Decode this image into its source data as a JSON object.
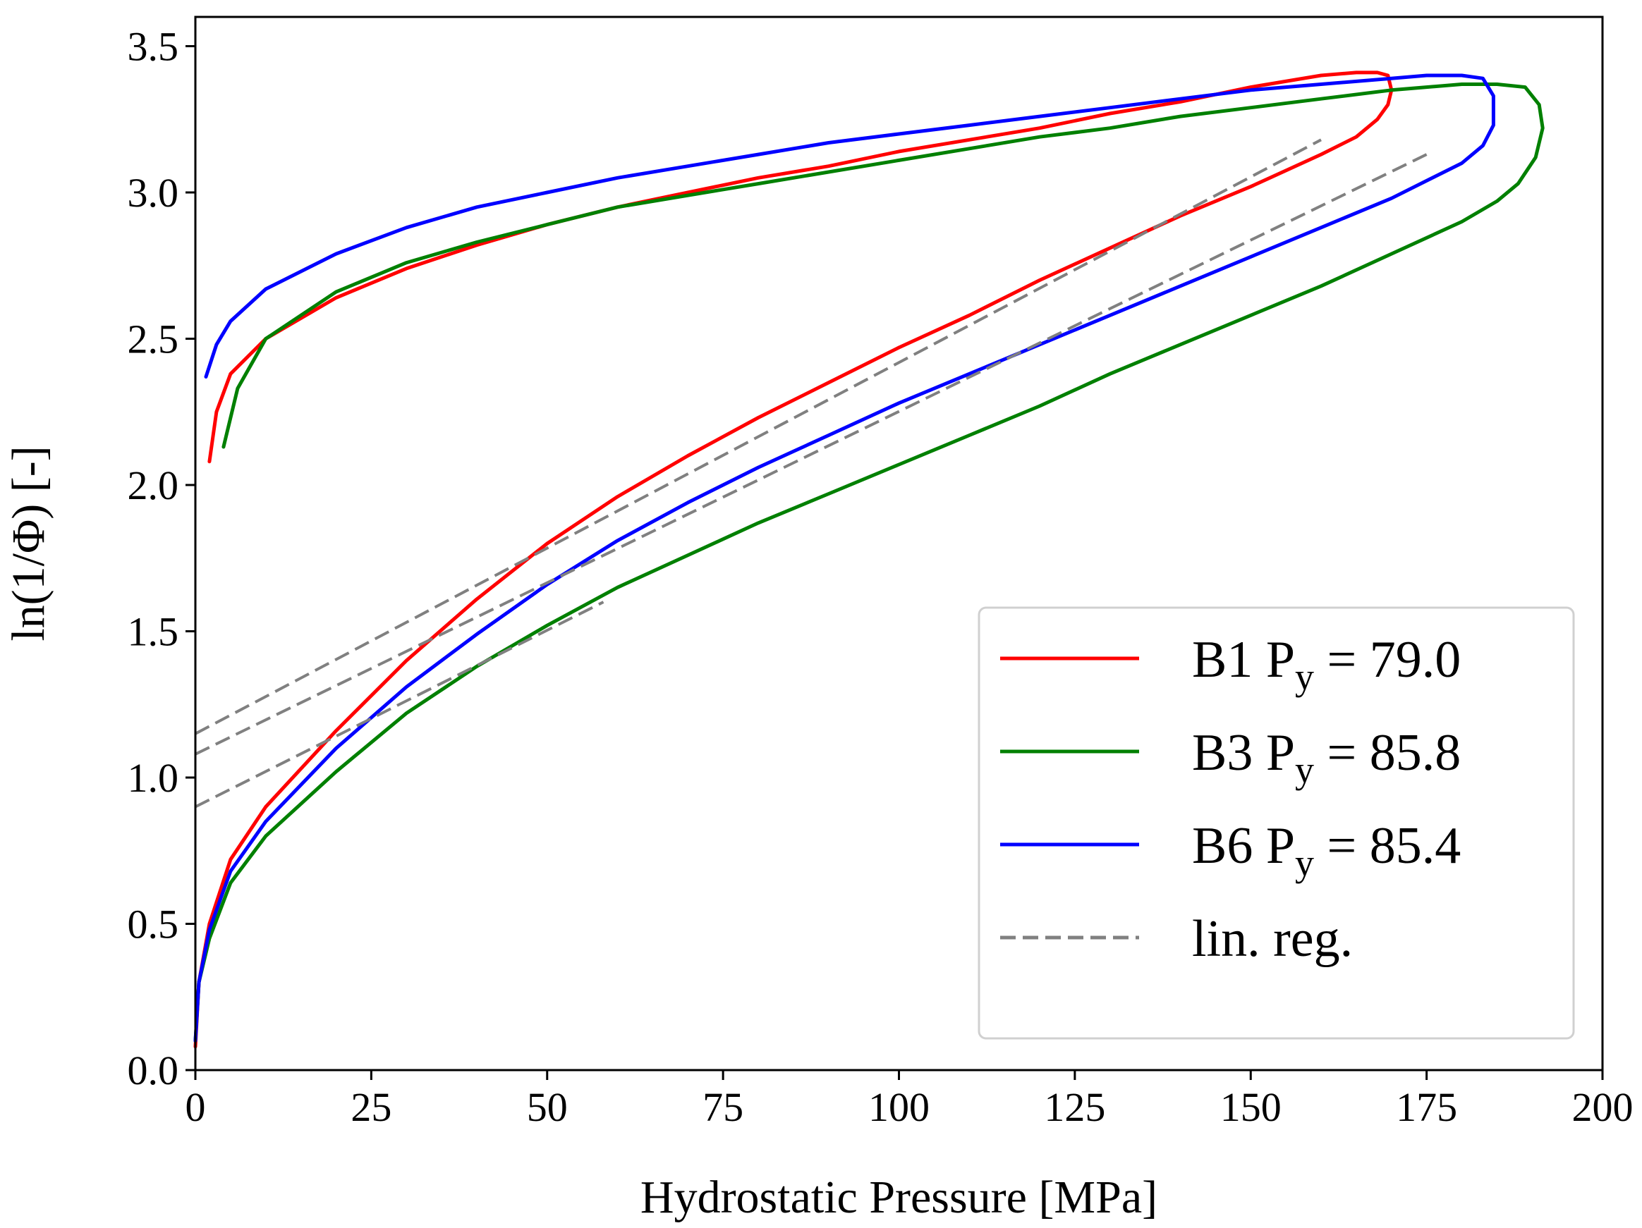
{
  "chart_data": {
    "type": "line",
    "title": "",
    "xlabel": "Hydrostatic Pressure [MPa]",
    "ylabel": "ln(1/Φ) [-]",
    "xlim": [
      0,
      200
    ],
    "ylim": [
      0,
      3.6
    ],
    "xticks": [
      0,
      25,
      50,
      75,
      100,
      125,
      150,
      175,
      200
    ],
    "yticks": [
      0.0,
      0.5,
      1.0,
      1.5,
      2.0,
      2.5,
      3.0,
      3.5
    ],
    "xtick_labels": [
      "0",
      "25",
      "50",
      "75",
      "100",
      "125",
      "150",
      "175",
      "200"
    ],
    "ytick_labels": [
      "0.0",
      "0.5",
      "1.0",
      "1.5",
      "2.0",
      "2.5",
      "3.0",
      "3.5"
    ],
    "grid": false,
    "legend_position": "bottom-right",
    "series": [
      {
        "name": "B1",
        "py_value": "79.0",
        "color": "#ff0000",
        "style": "solid",
        "x": [
          0,
          0.5,
          2,
          5,
          10,
          20,
          30,
          40,
          50,
          60,
          70,
          80,
          90,
          100,
          110,
          120,
          130,
          140,
          150,
          160,
          165,
          168,
          169.5,
          170,
          169.5,
          168,
          165,
          160,
          150,
          140,
          130,
          120,
          110,
          100,
          90,
          80,
          70,
          60,
          50,
          40,
          30,
          20,
          10,
          5,
          3,
          2
        ],
        "y": [
          0.08,
          0.3,
          0.5,
          0.72,
          0.9,
          1.16,
          1.4,
          1.61,
          1.8,
          1.96,
          2.1,
          2.23,
          2.35,
          2.47,
          2.58,
          2.7,
          2.81,
          2.92,
          3.02,
          3.13,
          3.19,
          3.25,
          3.3,
          3.35,
          3.4,
          3.41,
          3.41,
          3.4,
          3.36,
          3.31,
          3.27,
          3.22,
          3.18,
          3.14,
          3.09,
          3.05,
          3.0,
          2.95,
          2.89,
          2.82,
          2.74,
          2.64,
          2.5,
          2.38,
          2.25,
          2.08
        ]
      },
      {
        "name": "B3",
        "py_value": "85.8",
        "color": "#008000",
        "style": "solid",
        "x": [
          0,
          0.5,
          2,
          5,
          10,
          20,
          30,
          40,
          50,
          60,
          70,
          80,
          90,
          100,
          110,
          120,
          130,
          140,
          150,
          160,
          170,
          180,
          185,
          188,
          190.5,
          191.5,
          191,
          189,
          185,
          180,
          170,
          160,
          150,
          140,
          130,
          120,
          110,
          100,
          90,
          80,
          70,
          60,
          50,
          40,
          30,
          20,
          10,
          6,
          4
        ],
        "y": [
          0.1,
          0.3,
          0.45,
          0.64,
          0.8,
          1.02,
          1.22,
          1.38,
          1.52,
          1.65,
          1.76,
          1.87,
          1.97,
          2.07,
          2.17,
          2.27,
          2.38,
          2.48,
          2.58,
          2.68,
          2.79,
          2.9,
          2.97,
          3.03,
          3.12,
          3.22,
          3.3,
          3.36,
          3.37,
          3.37,
          3.35,
          3.32,
          3.29,
          3.26,
          3.22,
          3.19,
          3.15,
          3.11,
          3.07,
          3.03,
          2.99,
          2.95,
          2.89,
          2.83,
          2.76,
          2.66,
          2.5,
          2.33,
          2.13
        ]
      },
      {
        "name": "B6",
        "py_value": "85.4",
        "color": "#0000ff",
        "style": "solid",
        "x": [
          0,
          0.5,
          2,
          5,
          10,
          20,
          30,
          40,
          50,
          60,
          70,
          80,
          90,
          100,
          110,
          120,
          130,
          140,
          150,
          160,
          170,
          175,
          180,
          183,
          184.5,
          184.5,
          183,
          180,
          175,
          170,
          160,
          150,
          140,
          130,
          120,
          110,
          100,
          90,
          80,
          70,
          60,
          50,
          40,
          30,
          20,
          10,
          5,
          3,
          1.5
        ],
        "y": [
          0.1,
          0.3,
          0.48,
          0.68,
          0.85,
          1.1,
          1.31,
          1.49,
          1.66,
          1.81,
          1.94,
          2.06,
          2.17,
          2.28,
          2.38,
          2.48,
          2.58,
          2.68,
          2.78,
          2.88,
          2.98,
          3.04,
          3.1,
          3.16,
          3.23,
          3.33,
          3.39,
          3.4,
          3.4,
          3.39,
          3.37,
          3.35,
          3.32,
          3.29,
          3.26,
          3.23,
          3.2,
          3.17,
          3.13,
          3.09,
          3.05,
          3.0,
          2.95,
          2.88,
          2.79,
          2.67,
          2.56,
          2.48,
          2.37
        ]
      },
      {
        "name": "lin. reg.",
        "color": "#808080",
        "style": "dashed",
        "lines": [
          {
            "x": [
              0,
              160
            ],
            "y": [
              1.15,
              3.18
            ]
          },
          {
            "x": [
              0,
              175
            ],
            "y": [
              1.08,
              3.13
            ]
          },
          {
            "x": [
              0,
              58
            ],
            "y": [
              0.9,
              1.6
            ]
          }
        ]
      }
    ]
  },
  "legend": {
    "items": [
      {
        "name": "B1",
        "prefix": "B1 P",
        "sub": "y",
        "suffix": " = 79.0",
        "color": "#ff0000",
        "style": "solid"
      },
      {
        "name": "B3",
        "prefix": "B3 P",
        "sub": "y",
        "suffix": " = 85.8",
        "color": "#008000",
        "style": "solid"
      },
      {
        "name": "B6",
        "prefix": "B6 P",
        "sub": "y",
        "suffix": " = 85.4",
        "color": "#0000ff",
        "style": "solid"
      },
      {
        "name": "lin. reg.",
        "prefix": "lin. reg.",
        "sub": "",
        "suffix": "",
        "color": "#808080",
        "style": "dashed"
      }
    ]
  }
}
